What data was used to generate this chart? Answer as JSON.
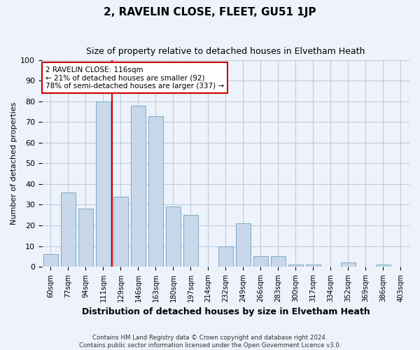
{
  "title": "2, RAVELIN CLOSE, FLEET, GU51 1JP",
  "subtitle": "Size of property relative to detached houses in Elvetham Heath",
  "xlabel": "Distribution of detached houses by size in Elvetham Heath",
  "ylabel": "Number of detached properties",
  "bar_labels": [
    "60sqm",
    "77sqm",
    "94sqm",
    "111sqm",
    "129sqm",
    "146sqm",
    "163sqm",
    "180sqm",
    "197sqm",
    "214sqm",
    "232sqm",
    "249sqm",
    "266sqm",
    "283sqm",
    "300sqm",
    "317sqm",
    "334sqm",
    "352sqm",
    "369sqm",
    "386sqm",
    "403sqm"
  ],
  "bar_values": [
    6,
    36,
    28,
    80,
    34,
    78,
    73,
    29,
    25,
    0,
    10,
    21,
    5,
    5,
    1,
    1,
    0,
    2,
    0,
    1,
    0
  ],
  "bar_color": "#c8d8ea",
  "bar_edge_color": "#7aaac8",
  "ylim": [
    0,
    100
  ],
  "vline_index": 3,
  "vline_color": "#cc0000",
  "annotation_lines": [
    "2 RAVELIN CLOSE: 116sqm",
    "← 21% of detached houses are smaller (92)",
    "78% of semi-detached houses are larger (337) →"
  ],
  "annotation_box_facecolor": "#ffffff",
  "annotation_box_edgecolor": "#cc0000",
  "footer_lines": [
    "Contains HM Land Registry data © Crown copyright and database right 2024.",
    "Contains public sector information licensed under the Open Government Licence v3.0."
  ],
  "bg_color": "#eef2fa",
  "plot_bg_color": "#eef2fa",
  "grid_color": "#c0cce0"
}
